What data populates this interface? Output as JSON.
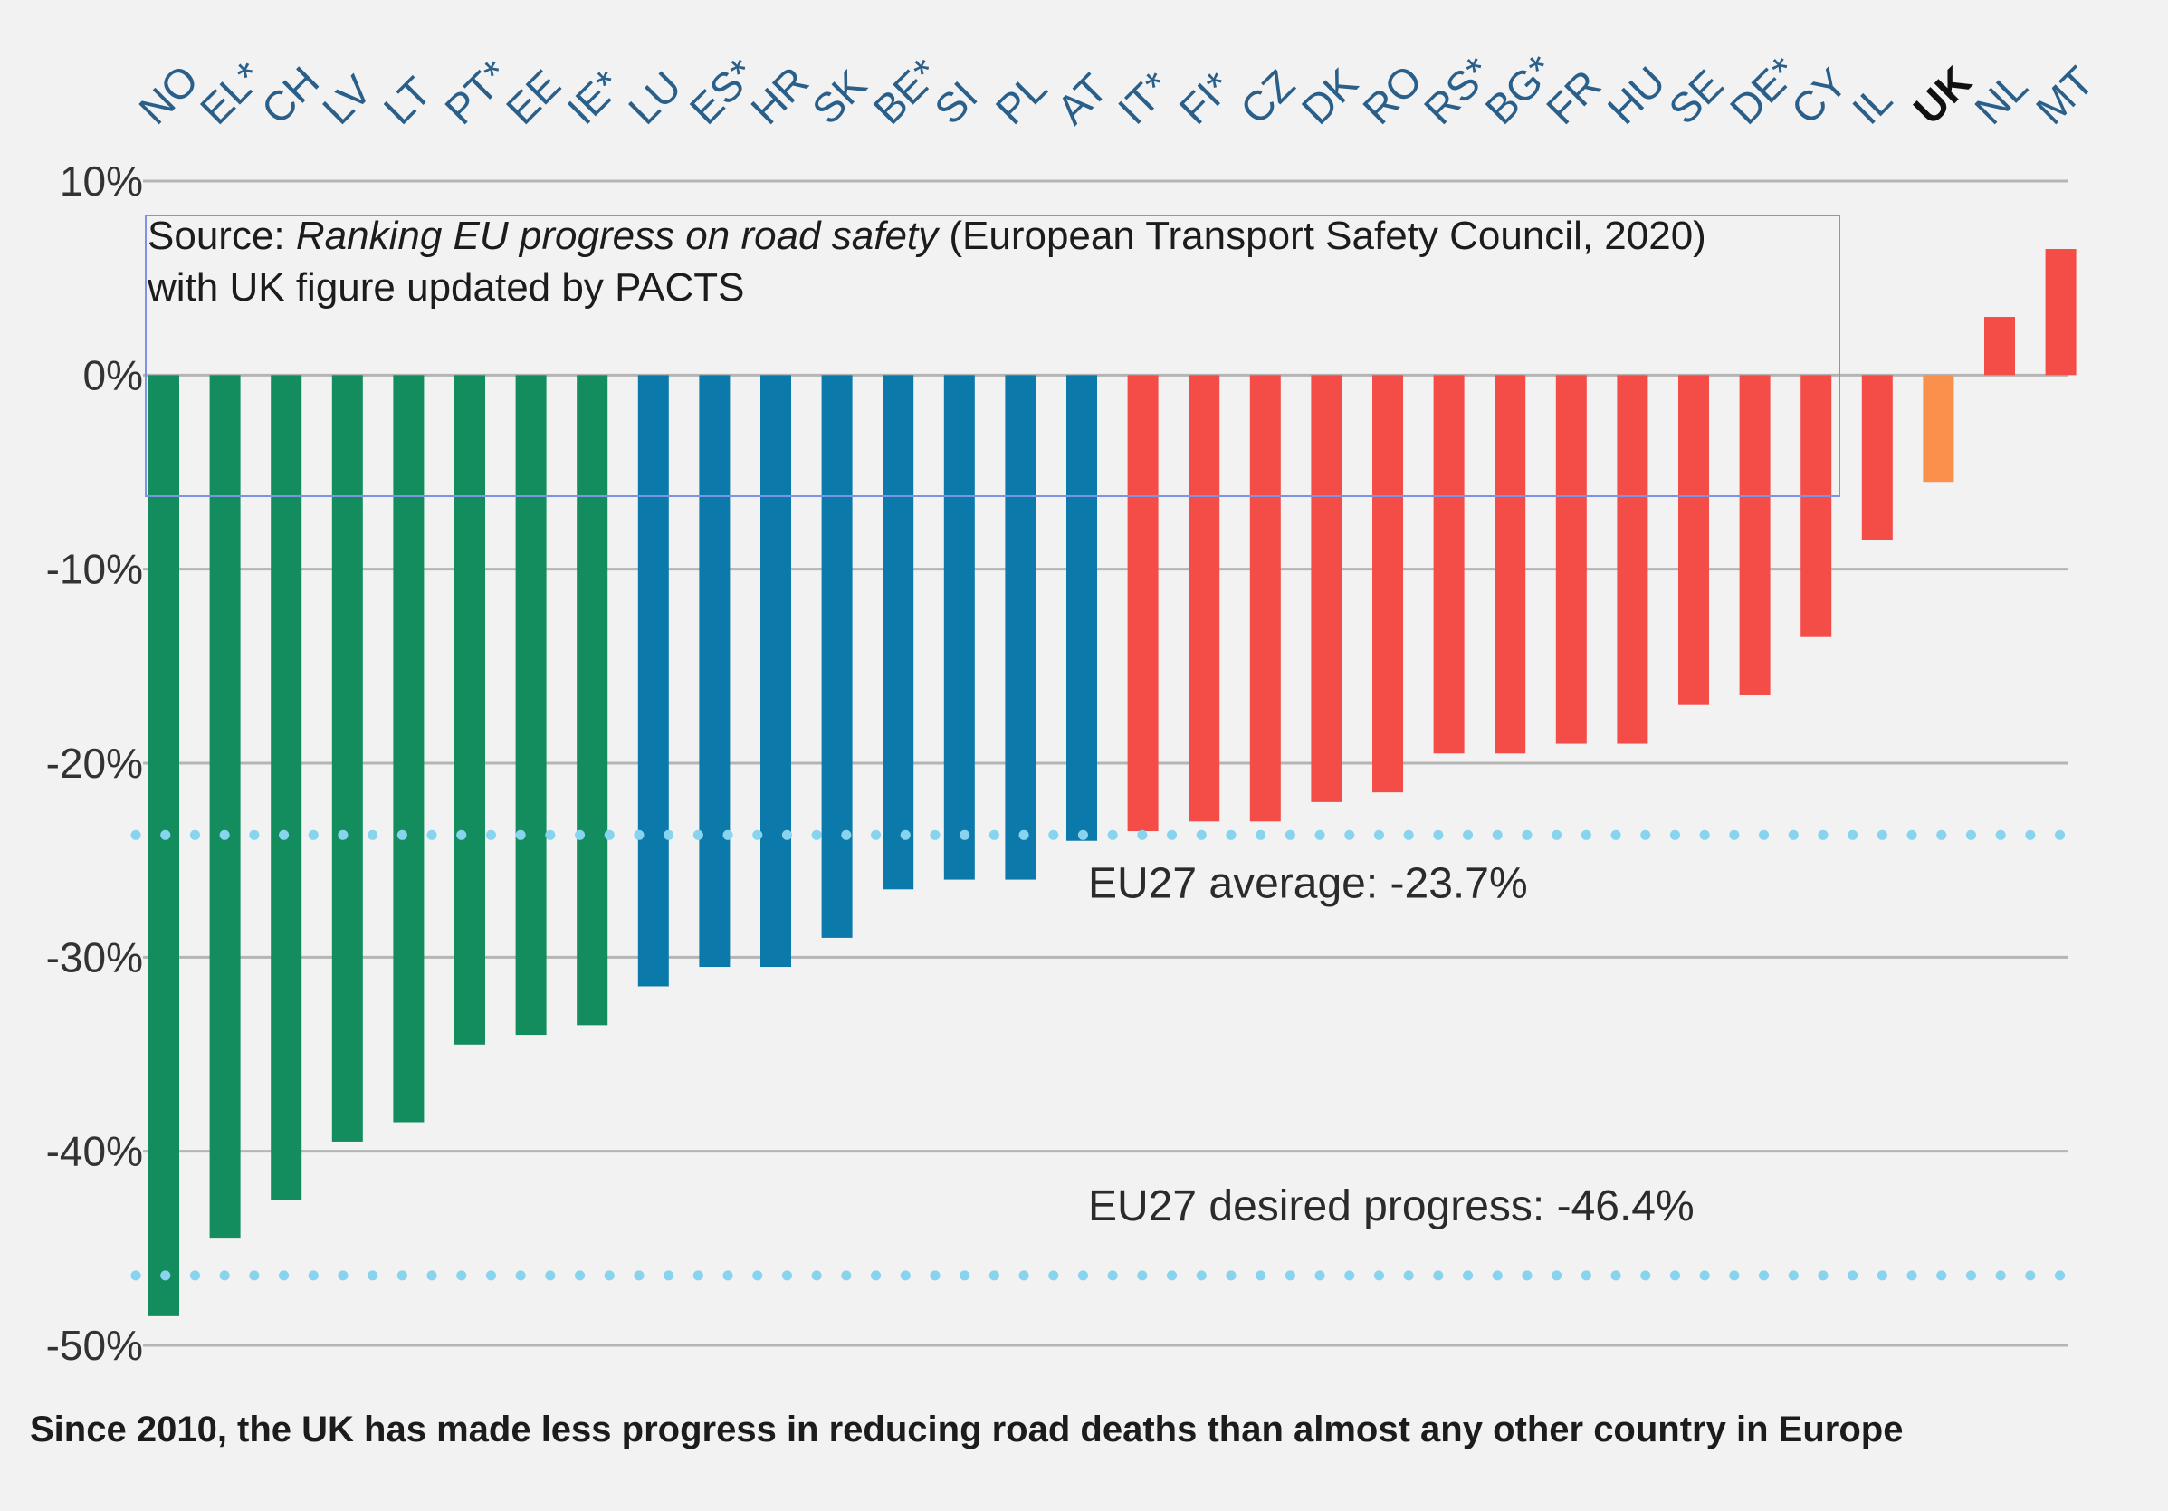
{
  "chart_data": {
    "type": "bar",
    "ylim": [
      -50,
      10
    ],
    "yticks": [
      10,
      0,
      -10,
      -20,
      -30,
      -40,
      -50
    ],
    "ytick_labels": [
      "10%",
      "0%",
      "-10%",
      "-20%",
      "-30%",
      "-40%",
      "-50%"
    ],
    "grid": true,
    "categories": [
      "NO",
      "EL*",
      "CH",
      "LV",
      "LT",
      "PT*",
      "EE",
      "IE*",
      "LU",
      "ES*",
      "HR",
      "SK",
      "BE*",
      "SI",
      "PL",
      "AT",
      "IT*",
      "FI*",
      "CZ",
      "DK",
      "RO",
      "RS*",
      "BG*",
      "FR",
      "HU",
      "SE",
      "DE*",
      "CY",
      "IL",
      "UK",
      "NL",
      "MT"
    ],
    "values": [
      -48.5,
      -44.5,
      -42.5,
      -39.5,
      -38.5,
      -34.5,
      -34.0,
      -33.5,
      -31.5,
      -30.5,
      -30.5,
      -29.0,
      -26.5,
      -26.0,
      -26.0,
      -24.0,
      -23.5,
      -23.0,
      -23.0,
      -22.0,
      -21.5,
      -19.5,
      -19.5,
      -19.0,
      -19.0,
      -17.0,
      -16.5,
      -13.5,
      -8.5,
      -5.5,
      3.0,
      6.5
    ],
    "bar_colors": [
      "#138d5e",
      "#138d5e",
      "#138d5e",
      "#138d5e",
      "#138d5e",
      "#138d5e",
      "#138d5e",
      "#138d5e",
      "#0b79aa",
      "#0b79aa",
      "#0b79aa",
      "#0b79aa",
      "#0b79aa",
      "#0b79aa",
      "#0b79aa",
      "#0b79aa",
      "#f44c47",
      "#f44c47",
      "#f44c47",
      "#f44c47",
      "#f44c47",
      "#f44c47",
      "#f44c47",
      "#f44c47",
      "#f44c47",
      "#f44c47",
      "#f44c47",
      "#f44c47",
      "#f44c47",
      "#f9904b",
      "#f44c47",
      "#f44c47"
    ],
    "highlight_category": "UK",
    "reference_lines": [
      {
        "label": "EU27 average: -23.7%",
        "value": -23.7,
        "color": "#88d4ee",
        "style": "dotted"
      },
      {
        "label": "EU27 desired progress: -46.4%",
        "value": -46.4,
        "color": "#88d4ee",
        "style": "dotted"
      }
    ],
    "source_note": {
      "prefix": "Source: ",
      "italic": "Ranking EU progress on road safety",
      "suffix": " (European Transport Safety Council, 2020)",
      "line2": "with UK figure updated by PACTS"
    },
    "caption": "Since 2010, the UK has made less progress in reducing road deaths than almost any other country in Europe"
  }
}
